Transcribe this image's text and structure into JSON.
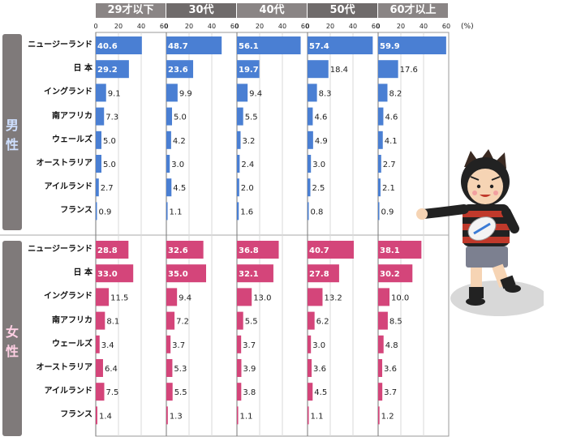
{
  "chart_data": {
    "type": "bar",
    "orientation": "horizontal",
    "unit": "(%)",
    "xlim": [
      0,
      60
    ],
    "xticks": [
      0,
      20,
      40,
      60
    ],
    "panels": [
      "29才以下",
      "30代",
      "40代",
      "50代",
      "60才以上"
    ],
    "categories": [
      "ニュージーランド",
      "日 本",
      "イングランド",
      "南アフリカ",
      "ウェールズ",
      "オーストラリア",
      "アイルランド",
      "フランス"
    ],
    "groups": [
      {
        "name": "男 性",
        "color": "#4a7fd3",
        "values": [
          [
            40.6,
            29.2,
            9.1,
            7.3,
            5.0,
            5.0,
            2.7,
            0.9
          ],
          [
            48.7,
            23.6,
            9.9,
            5.0,
            4.2,
            3.0,
            4.5,
            1.1
          ],
          [
            56.1,
            19.7,
            9.4,
            5.5,
            3.2,
            2.4,
            2.0,
            1.6
          ],
          [
            57.4,
            18.4,
            8.3,
            4.6,
            4.9,
            3.0,
            2.5,
            0.8
          ],
          [
            59.9,
            17.6,
            8.2,
            4.6,
            4.1,
            2.7,
            2.1,
            0.9
          ]
        ]
      },
      {
        "name": "女 性",
        "color": "#d4457a",
        "values": [
          [
            28.8,
            33.0,
            11.5,
            8.1,
            3.4,
            6.4,
            7.5,
            1.4
          ],
          [
            32.6,
            35.0,
            9.4,
            7.2,
            3.7,
            5.3,
            5.5,
            1.3
          ],
          [
            36.8,
            32.1,
            13.0,
            5.5,
            3.7,
            3.9,
            3.8,
            1.1
          ],
          [
            40.7,
            27.8,
            13.2,
            6.2,
            3.0,
            3.6,
            4.5,
            1.1
          ],
          [
            38.1,
            30.2,
            10.0,
            8.5,
            4.8,
            3.6,
            3.7,
            1.2
          ]
        ]
      }
    ]
  }
}
